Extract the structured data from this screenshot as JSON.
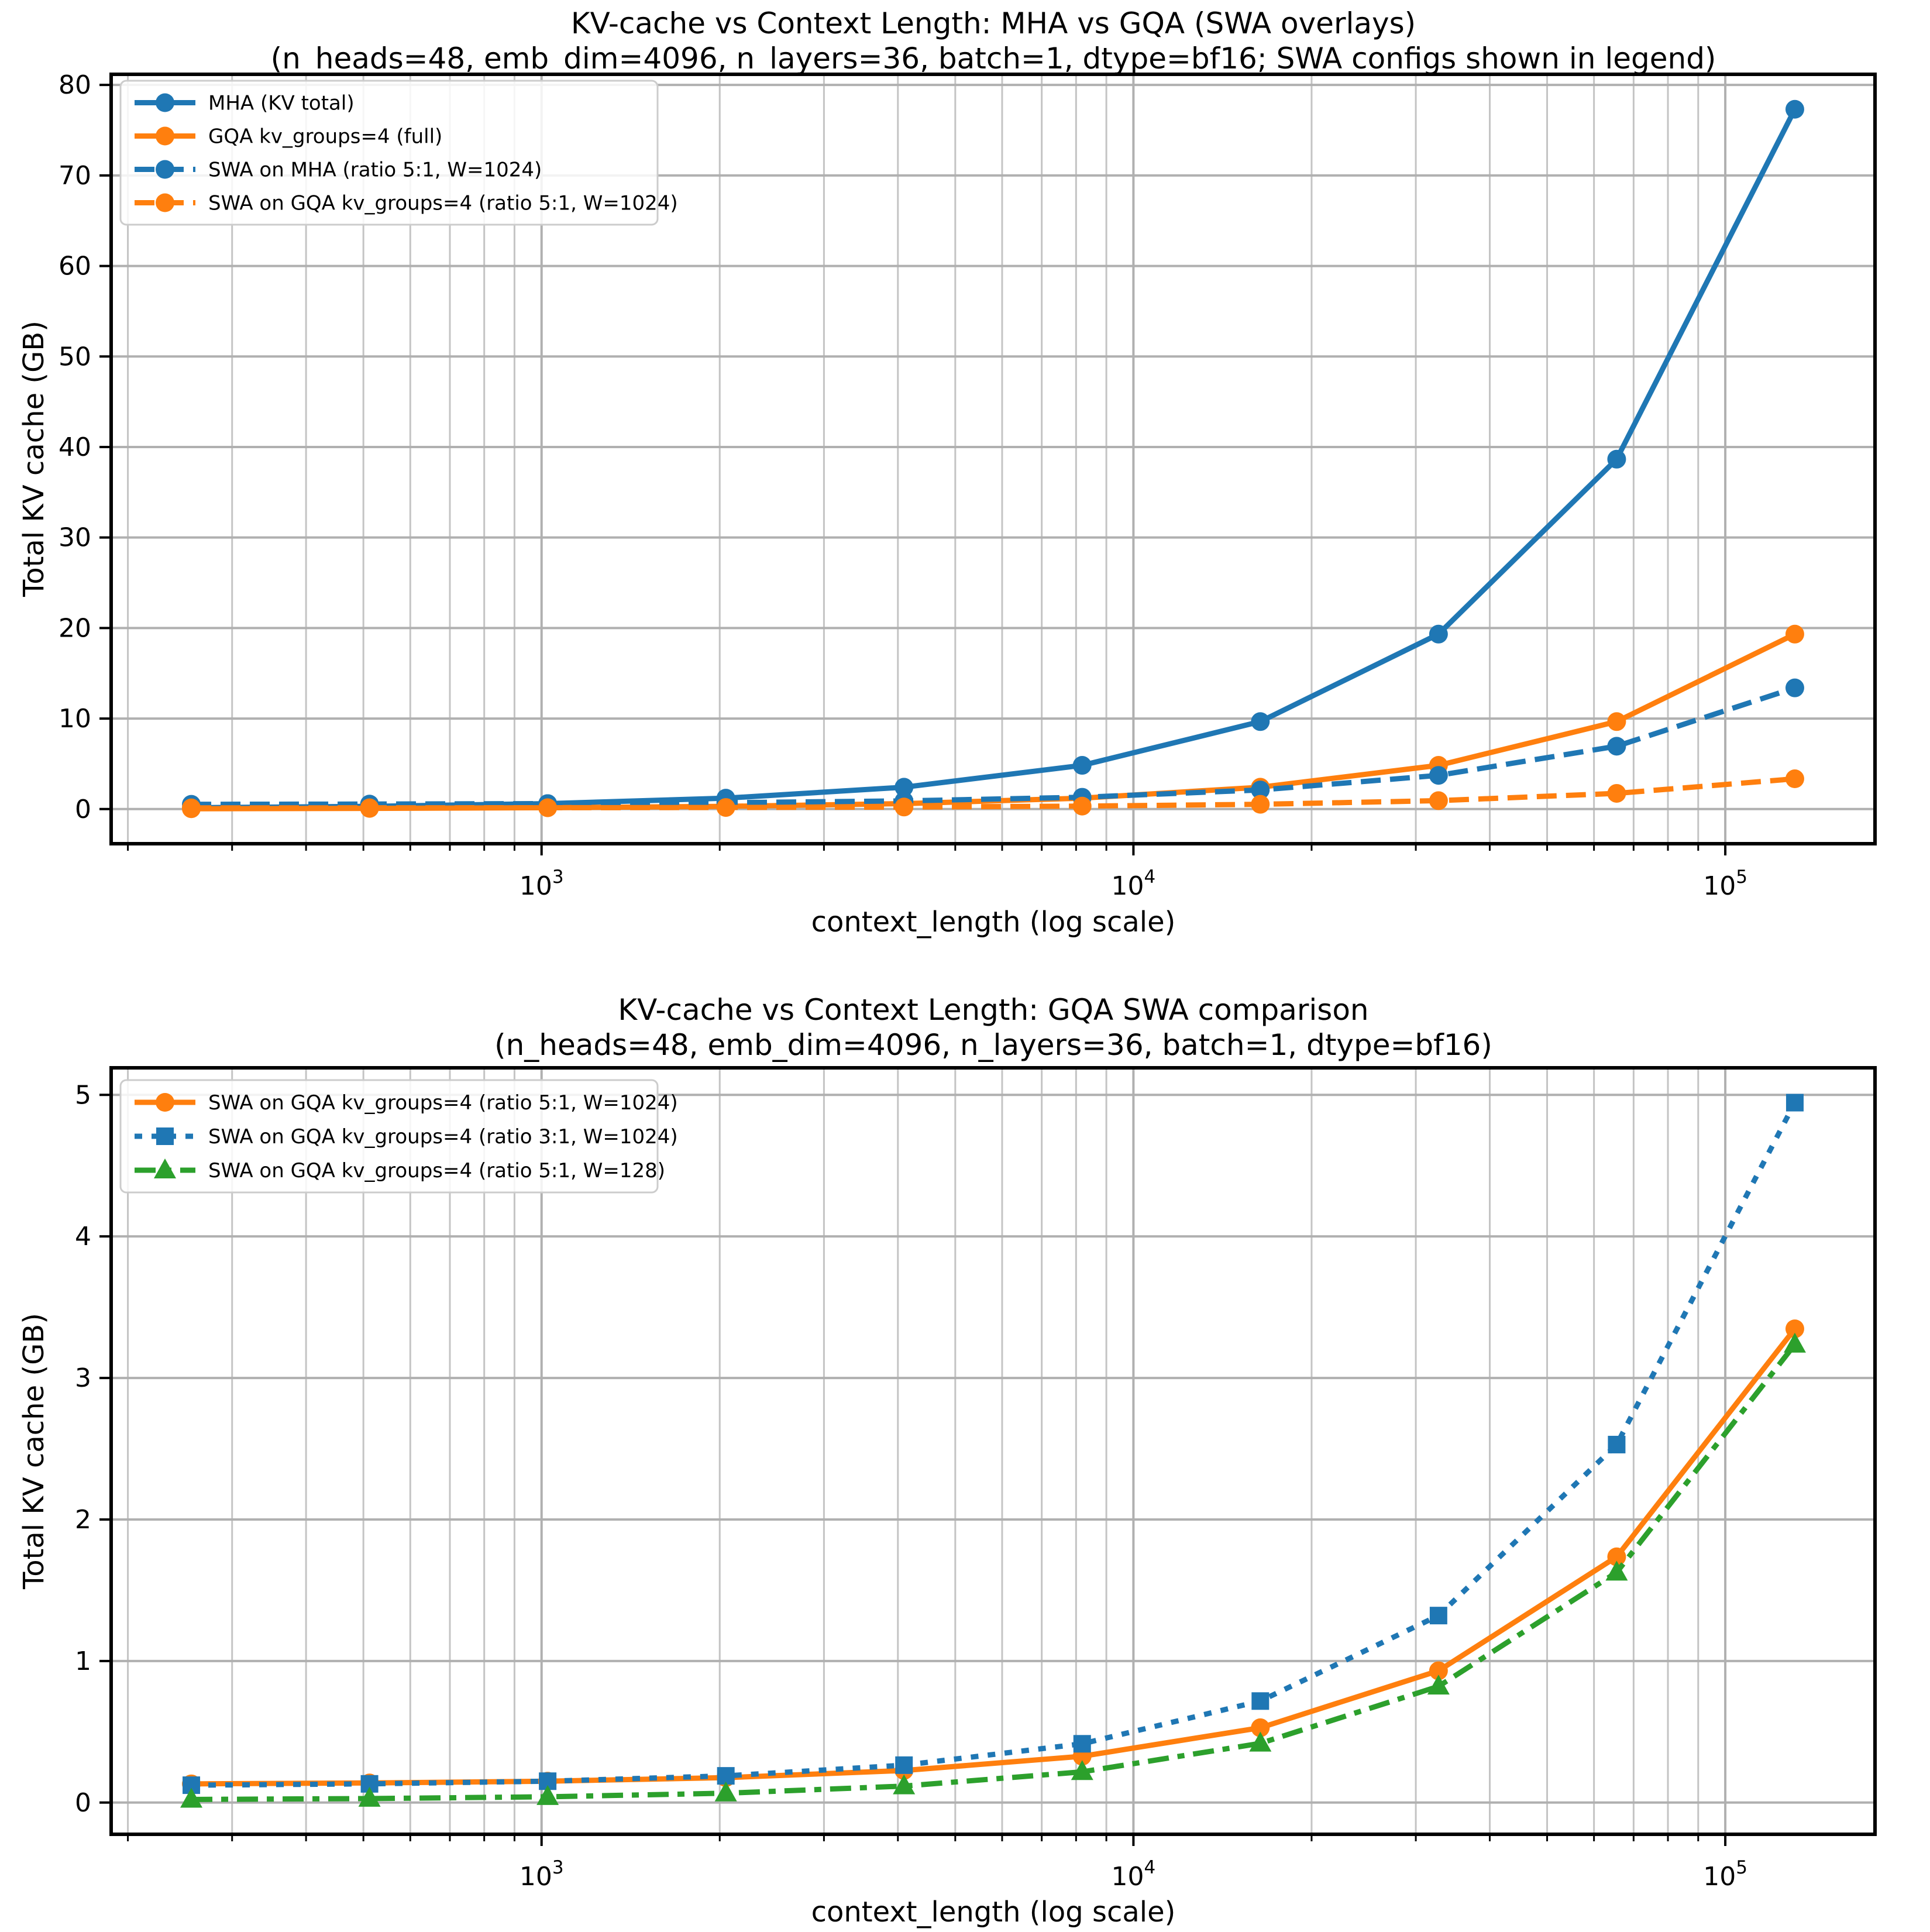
{
  "figure": {
    "background": "#ffffff",
    "grid_major_color": "#b0b0b0",
    "grid_minor_color": "#c4c4c4",
    "spine_color": "#000000",
    "text_color": "#000000"
  },
  "chart_data": [
    {
      "type": "line",
      "title": "KV-cache vs Context Length: MHA vs GQA (SWA overlays)",
      "subtitle": "(n_heads=48, emb_dim=4096, n_layers=36, batch=1, dtype=bf16; SWA configs shown in legend)",
      "xlabel": "context_length (log scale)",
      "ylabel": "Total KV cache (GB)",
      "x_scale": "log",
      "grid": "major-and-minor-x, major-y",
      "legend_position": "upper-left",
      "x": [
        256,
        512,
        1024,
        2048,
        4096,
        8192,
        16384,
        32768,
        65536,
        131072
      ],
      "xticks": [
        {
          "base": "10",
          "exp": "3",
          "value": 1000
        },
        {
          "base": "10",
          "exp": "4",
          "value": 10000
        },
        {
          "base": "10",
          "exp": "5",
          "value": 100000
        }
      ],
      "yticks": [
        0,
        10,
        20,
        30,
        40,
        50,
        60,
        70,
        80
      ],
      "series": [
        {
          "name": "MHA (KV total)",
          "color": "#1f77b4",
          "style": "solid",
          "marker": "circle",
          "values": [
            0.151,
            0.3019,
            0.604,
            1.2079,
            2.4159,
            4.8318,
            9.6637,
            19.3274,
            38.6547,
            77.3094
          ]
        },
        {
          "name": "GQA kv_groups=4 (full)",
          "color": "#ff7f0e",
          "style": "solid",
          "marker": "circle",
          "values": [
            0.0377,
            0.0755,
            0.151,
            0.3019,
            0.604,
            1.2079,
            2.4159,
            4.8318,
            9.6637,
            19.3274
          ]
        },
        {
          "name": "SWA on MHA (ratio 5:1, W=1024)",
          "color": "#1f77b4",
          "style": "dashed",
          "marker": "circle",
          "values": [
            0.5285,
            0.5536,
            0.604,
            0.7046,
            0.906,
            1.3086,
            2.1139,
            3.7245,
            6.9458,
            13.3882
          ]
        },
        {
          "name": "SWA on GQA kv_groups=4 (ratio 5:1, W=1024)",
          "color": "#ff7f0e",
          "style": "dashed",
          "marker": "circle",
          "values": [
            0.1321,
            0.1384,
            0.151,
            0.1762,
            0.2265,
            0.3272,
            0.5285,
            0.9311,
            1.7364,
            3.3471
          ]
        }
      ]
    },
    {
      "type": "line",
      "title": "KV-cache vs Context Length: GQA SWA comparison",
      "subtitle": "(n_heads=48, emb_dim=4096, n_layers=36, batch=1, dtype=bf16)",
      "xlabel": "context_length (log scale)",
      "ylabel": "Total KV cache (GB)",
      "x_scale": "log",
      "grid": "major-and-minor-x, major-y",
      "legend_position": "upper-left",
      "x": [
        256,
        512,
        1024,
        2048,
        4096,
        8192,
        16384,
        32768,
        65536,
        131072
      ],
      "xticks": [
        {
          "base": "10",
          "exp": "3",
          "value": 1000
        },
        {
          "base": "10",
          "exp": "4",
          "value": 10000
        },
        {
          "base": "10",
          "exp": "5",
          "value": 100000
        }
      ],
      "yticks": [
        0,
        1,
        2,
        3,
        4,
        5
      ],
      "series": [
        {
          "name": "SWA on GQA kv_groups=4 (ratio 5:1, W=1024)",
          "color": "#ff7f0e",
          "style": "solid",
          "marker": "circle",
          "values": [
            0.1321,
            0.1384,
            0.151,
            0.1762,
            0.2265,
            0.3272,
            0.5285,
            0.9311,
            1.7364,
            3.3471
          ]
        },
        {
          "name": "SWA on GQA kv_groups=4 (ratio 3:1, W=1024)",
          "color": "#1f77b4",
          "style": "dotted",
          "marker": "square",
          "values": [
            0.1227,
            0.1321,
            0.151,
            0.1887,
            0.2642,
            0.4152,
            0.7172,
            1.3212,
            2.5292,
            4.9451
          ]
        },
        {
          "name": "SWA on GQA kv_groups=4 (ratio 5:1, W=128)",
          "color": "#2ca02c",
          "style": "dashdot",
          "marker": "triangle",
          "values": [
            0.022,
            0.0283,
            0.0409,
            0.0661,
            0.1164,
            0.2171,
            0.4184,
            0.821,
            1.6263,
            3.237
          ]
        }
      ]
    }
  ]
}
